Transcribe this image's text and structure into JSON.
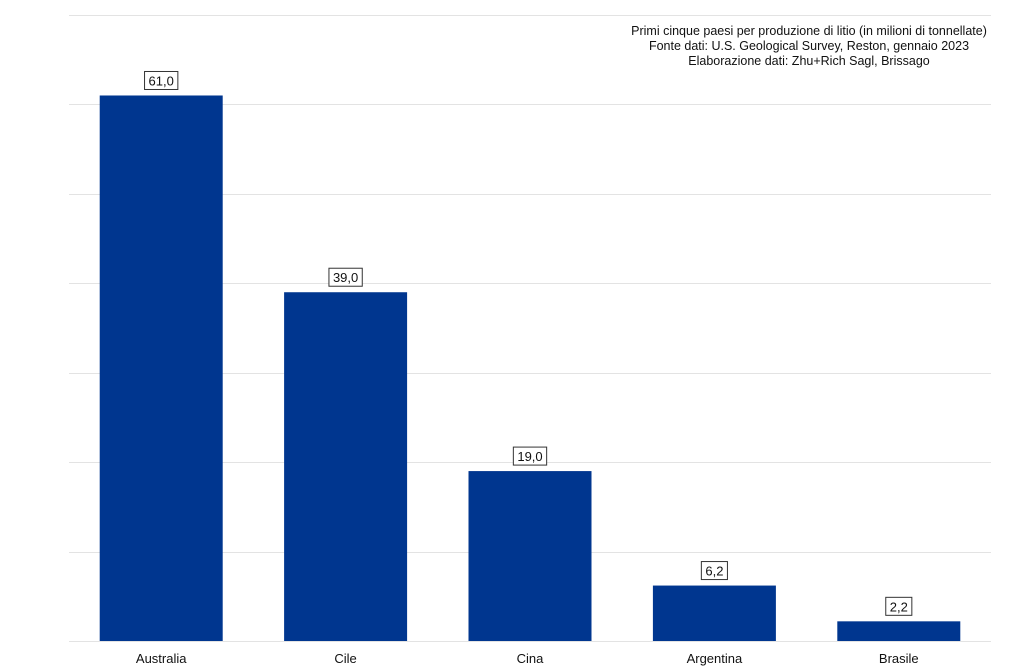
{
  "chart_data": {
    "type": "bar",
    "title": "Primi cinque paesi per produzione di litio (in milioni di tonnellate)",
    "subtitle_lines": [
      "Fonte dati: U.S. Geological Survey, Reston, gennaio 2023",
      "Elaborazione dati: Zhu+Rich Sagl, Brissago"
    ],
    "categories": [
      "Australia",
      "Cile",
      "Cina",
      "Argentina",
      "Brasile"
    ],
    "values": [
      61.0,
      39.0,
      19.0,
      6.2,
      2.2
    ],
    "data_labels": [
      "61,0",
      "39,0",
      "19,0",
      "6,2",
      "2,2"
    ],
    "xlabel": "",
    "ylabel": "",
    "ylim": [
      0,
      70
    ],
    "grid": true,
    "grid_step": 10,
    "y_tick_labels_visible": false,
    "legend": "none",
    "colors": {
      "bar": "#00368f",
      "grid": "#e3e3e3",
      "label_border": "#333333"
    }
  }
}
